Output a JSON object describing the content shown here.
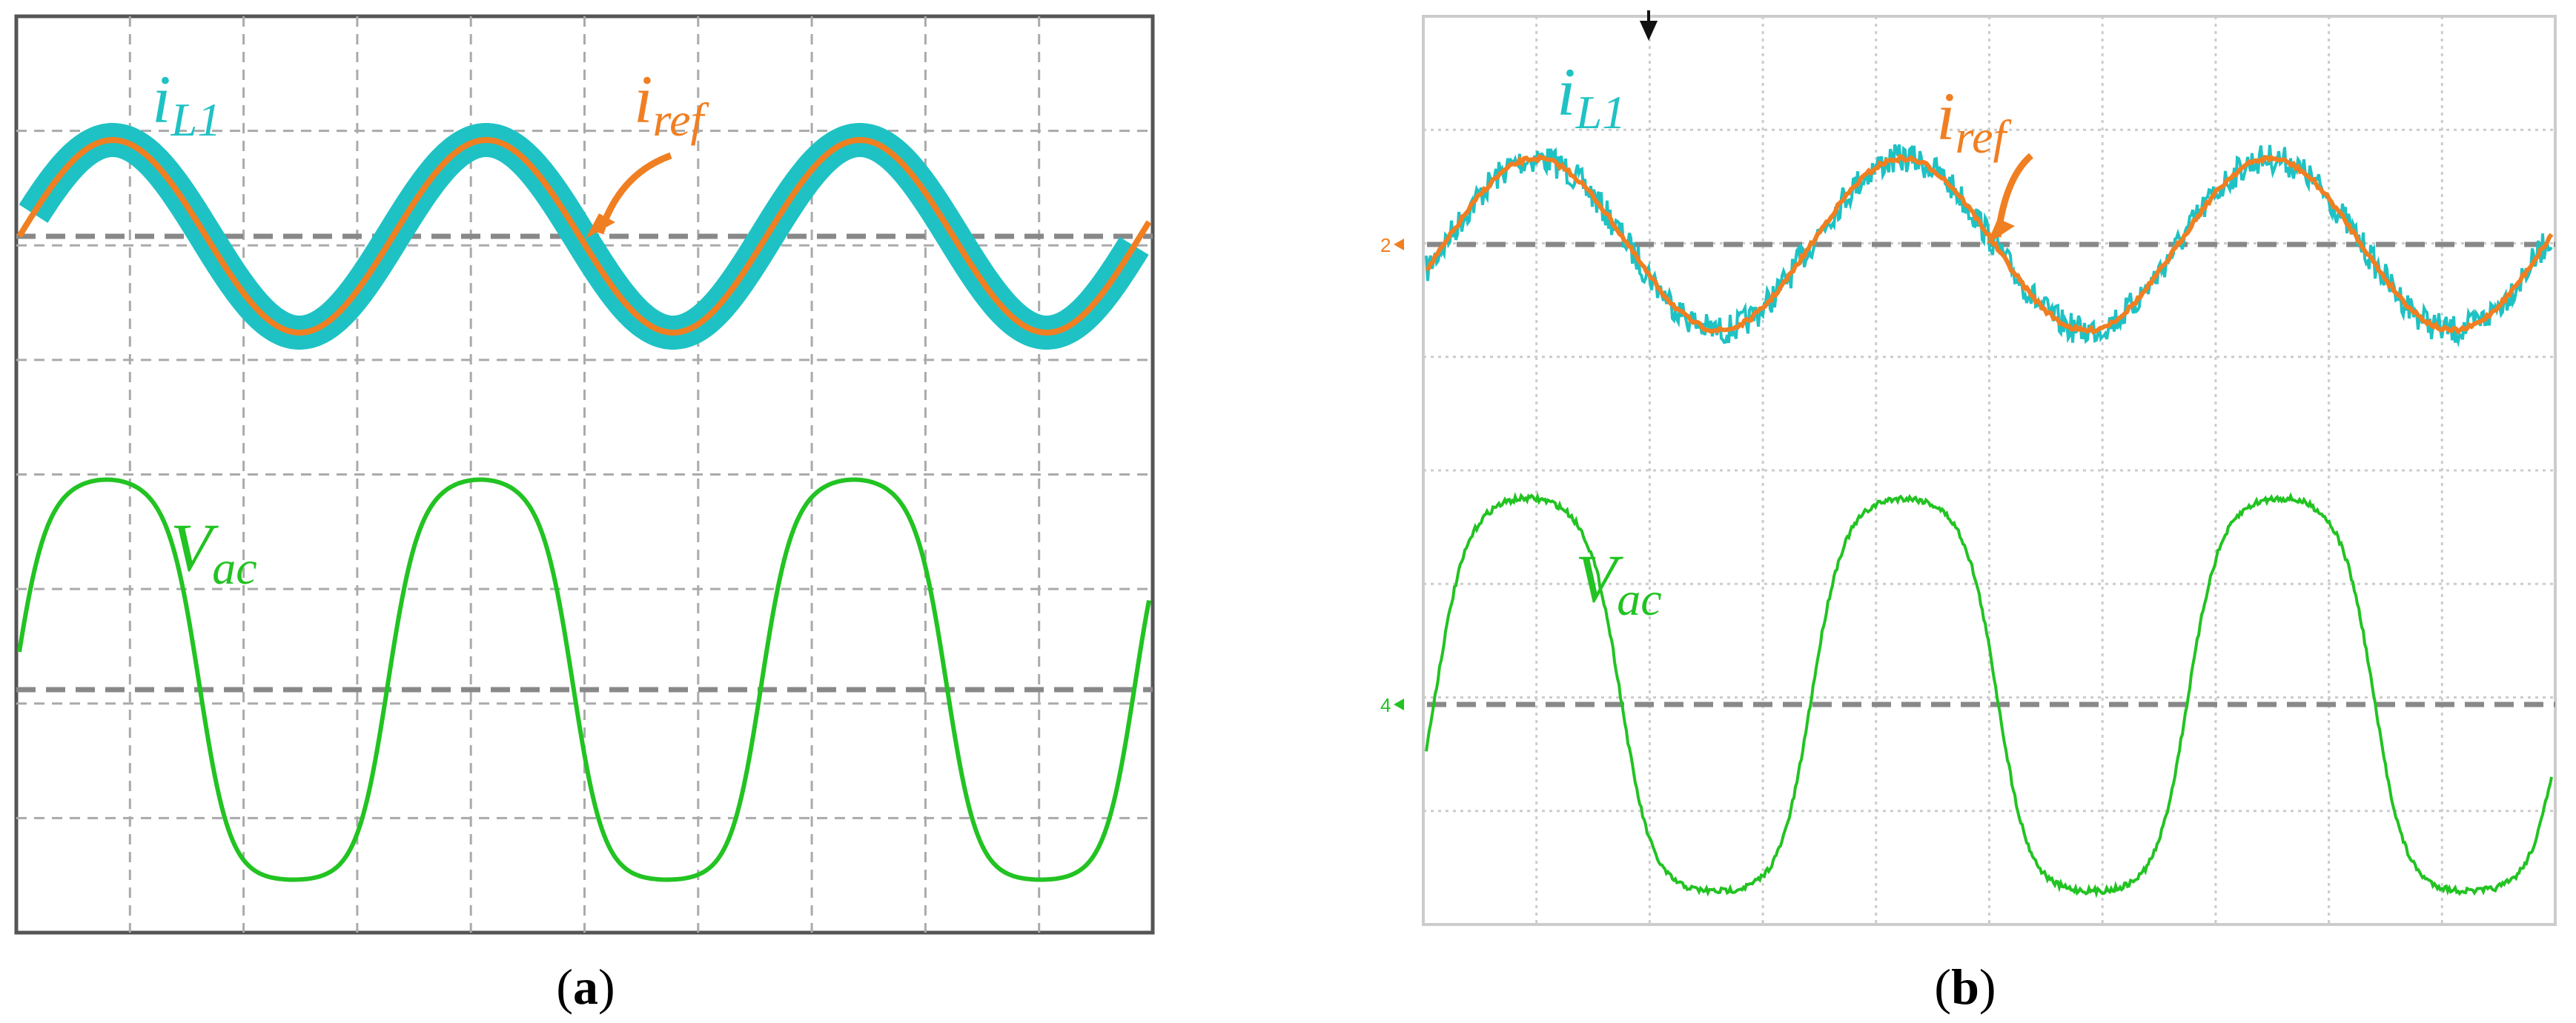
{
  "panels": [
    {
      "caption": [
        "(",
        "a",
        ")"
      ],
      "labels": [
        {
          "main": "i",
          "sub": "L1"
        },
        {
          "main": "i",
          "sub": "ref"
        },
        {
          "main": "V",
          "sub": "ac"
        }
      ]
    },
    {
      "caption": [
        "(",
        "b",
        ")"
      ],
      "labels": [
        {
          "main": "i",
          "sub": "L1"
        },
        {
          "main": "i",
          "sub": "ref"
        },
        {
          "main": "V",
          "sub": "ac"
        }
      ],
      "markers": [
        "2",
        "4"
      ]
    }
  ]
}
